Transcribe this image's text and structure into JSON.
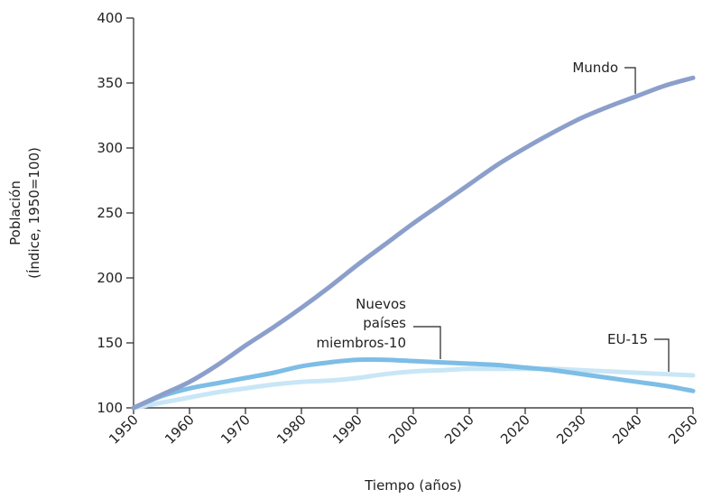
{
  "chart_data": {
    "type": "line",
    "xlabel": "Tiempo (años)",
    "ylabel_lines": [
      "Población",
      "(Índice, 1950=100)"
    ],
    "xlim": [
      1950,
      2050
    ],
    "ylim": [
      100,
      400
    ],
    "x_ticks": [
      "1950",
      "1960",
      "1970",
      "1980",
      "1990",
      "2000",
      "2010",
      "2020",
      "2030",
      "2040",
      "2050"
    ],
    "y_ticks": [
      "100",
      "150",
      "200",
      "250",
      "300",
      "350",
      "400"
    ],
    "grid": false,
    "series": [
      {
        "name": "Mundo",
        "color": "#8c9fcb",
        "x": [
          1950,
          1955,
          1960,
          1965,
          1970,
          1975,
          1980,
          1985,
          1990,
          1995,
          2000,
          2005,
          2010,
          2015,
          2020,
          2025,
          2030,
          2035,
          2040,
          2045,
          2050
        ],
        "y": [
          100,
          110,
          120,
          133,
          148,
          162,
          177,
          193,
          210,
          226,
          242,
          257,
          272,
          287,
          300,
          312,
          323,
          332,
          340,
          348,
          354
        ]
      },
      {
        "name": "Nuevos países miembros-10",
        "color": "#7dbde6",
        "x": [
          1950,
          1955,
          1960,
          1965,
          1970,
          1975,
          1980,
          1985,
          1990,
          1995,
          2000,
          2005,
          2010,
          2015,
          2020,
          2025,
          2030,
          2035,
          2040,
          2045,
          2050
        ],
        "y": [
          100,
          109,
          115,
          119,
          123,
          127,
          132,
          135,
          137,
          137,
          136,
          135,
          134,
          133,
          131,
          129,
          126,
          123,
          120,
          117,
          113
        ]
      },
      {
        "name": "EU-15",
        "color": "#c8e6f6",
        "x": [
          1950,
          1955,
          1960,
          1965,
          1970,
          1975,
          1980,
          1985,
          1990,
          1995,
          2000,
          2005,
          2010,
          2015,
          2020,
          2025,
          2030,
          2035,
          2040,
          2045,
          2050
        ],
        "y": [
          100,
          104,
          108,
          112,
          115,
          118,
          120,
          121,
          123,
          126,
          128,
          129,
          130,
          130,
          130,
          130,
          129,
          128,
          127,
          126,
          125
        ]
      }
    ],
    "annotations": {
      "mundo": "Mundo",
      "nuevos": [
        "Nuevos",
        "países",
        "miembros-10"
      ],
      "eu15": "EU-15"
    }
  }
}
